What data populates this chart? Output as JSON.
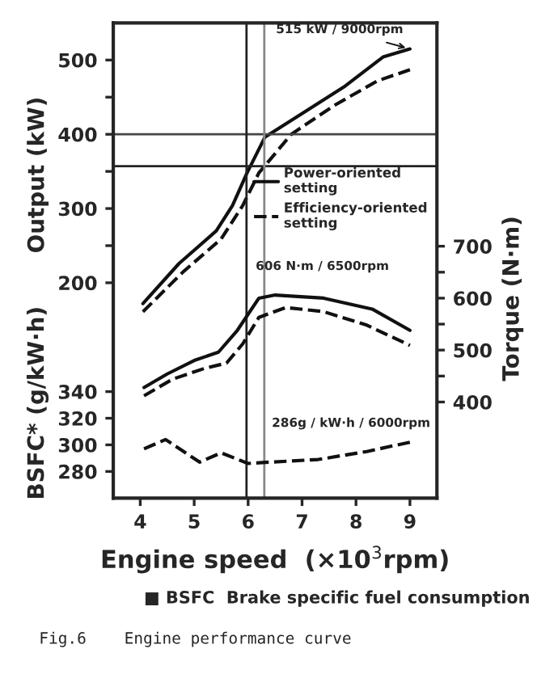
{
  "chart_data": {
    "type": "line",
    "xlabel": "Engine speed  (×10$^{3}$rpm)",
    "ylabel": "Output (kW)",
    "y2label": "Torque (N·m)",
    "y3label": "BSFC* (g/kW·h)",
    "xlim": [
      3.5,
      9.5
    ],
    "xticks": [
      4,
      5,
      6,
      7,
      8,
      9
    ],
    "ylim": [
      -90,
      550
    ],
    "yticks": [
      200,
      {
        "value": 250,
        "label": null
      },
      300,
      {
        "value": 350,
        "label": null
      },
      400,
      {
        "value": 450,
        "label": null
      },
      500
    ],
    "y2lim": [
      215,
      1130
    ],
    "y2ticks": [
      400,
      {
        "value": 450,
        "label": null
      },
      500,
      {
        "value": 550,
        "label": null
      },
      600,
      {
        "value": 650,
        "label": null
      },
      700
    ],
    "y3lim": [
      260,
      617
    ],
    "y3ticks": [
      280,
      300,
      320,
      340
    ],
    "grid": false,
    "legend": "right",
    "series": [
      {
        "name": "Power-oriented setting",
        "color": "#111111",
        "line_style": "solid",
        "x": [
          4.05,
          4.72,
          5.41,
          5.71,
          5.98,
          6.31,
          7.0,
          7.8,
          8.5,
          9.0
        ],
        "values": [
          172,
          226,
          270,
          304,
          348,
          396,
          428,
          465,
          504,
          515
        ]
      },
      {
        "name": "Efficiency-oriented setting",
        "color": "#111111",
        "line_style": "dashed",
        "x": [
          4.05,
          4.8,
          5.5,
          5.9,
          6.2,
          6.8,
          7.6,
          8.4,
          9.0
        ],
        "values": [
          161,
          215,
          259,
          304,
          348,
          400,
          439,
          472,
          487
        ]
      },
      {
        "color": "#111111",
        "line_style": "solid",
        "axis": "y2",
        "x": [
          4.07,
          4.5,
          5.0,
          5.45,
          5.8,
          6.2,
          6.5,
          7.4,
          8.3,
          9.0
        ],
        "values": [
          428,
          454,
          480,
          496,
          538,
          600,
          606,
          600,
          579,
          538
        ]
      },
      {
        "color": "#111111",
        "line_style": "dashed",
        "axis": "y2",
        "x": [
          4.07,
          4.6,
          5.2,
          5.6,
          5.9,
          6.2,
          6.7,
          7.4,
          8.2,
          9.0
        ],
        "values": [
          412,
          444,
          465,
          475,
          512,
          563,
          582,
          574,
          548,
          509
        ]
      },
      {
        "color": "#111111",
        "line_style": "dashed",
        "axis": "y3",
        "x": [
          4.07,
          4.47,
          5.1,
          5.5,
          6.0,
          6.4,
          7.3,
          8.2,
          9.0
        ],
        "values": [
          297,
          304,
          287,
          294,
          286,
          287,
          289,
          295,
          302
        ]
      }
    ],
    "ref_lines": [
      {
        "axis": "y",
        "value": 400,
        "color": "#444444"
      },
      {
        "axis": "y",
        "value": 357,
        "color": "#222222"
      },
      {
        "axis": "x",
        "value": 5.97,
        "color": "#222222"
      },
      {
        "axis": "x",
        "value": 6.3,
        "color": "#888888"
      }
    ],
    "annotations": [
      {
        "text": "515 kW / 9000rpm",
        "x": 9.0,
        "y": 515
      },
      "606 N·m / 6500rpm",
      "286g / kW·h / 6000rpm",
      "■ BSFC  Brake specific fuel consumption",
      "Fig.6    Engine performance curve"
    ]
  }
}
